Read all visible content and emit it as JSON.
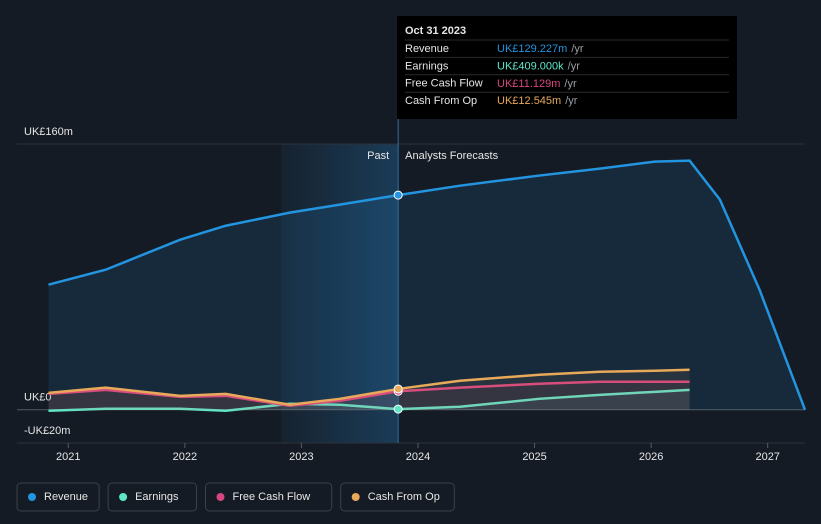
{
  "chart_data": {
    "type": "line",
    "x": [
      2020.83,
      2021.32,
      2021.96,
      2022.35,
      2022.9,
      2023.33,
      2023.83,
      2024.36,
      2025.04,
      2025.56,
      2026.03,
      2026.33,
      2026.59,
      2026.93,
      2027.32
    ],
    "series": [
      {
        "name": "Revenue",
        "color": "#2394df",
        "values": [
          75.3,
          84.3,
          102.4,
          110.8,
          118.7,
          123.5,
          129.227,
          134.9,
          141,
          145.2,
          149.4,
          150,
          126.5,
          72.3,
          0
        ]
      },
      {
        "name": "Earnings",
        "color": "#5ee6c8",
        "values": [
          -0.6,
          0.6,
          0.6,
          -0.6,
          3.6,
          3,
          0.409,
          1.8,
          6.6,
          9,
          10.8,
          12,
          null,
          null,
          null
        ]
      },
      {
        "name": "Free Cash Flow",
        "color": "#d6477f",
        "values": [
          9.6,
          12,
          7.8,
          8.4,
          2.4,
          5.4,
          11.129,
          13.3,
          15.7,
          16.9,
          16.9,
          16.9,
          null,
          null,
          null
        ]
      },
      {
        "name": "Cash From Op",
        "color": "#e8a95a",
        "values": [
          10.2,
          13.3,
          8.4,
          9.6,
          3,
          6.6,
          12.545,
          17.5,
          21.1,
          22.9,
          23.5,
          24.1,
          null,
          null,
          null
        ]
      }
    ],
    "xlim": [
      2020.56,
      2027.32
    ],
    "xticks": [
      2021,
      2022,
      2023,
      2024,
      2025,
      2026,
      2027
    ],
    "ylim": [
      -20,
      160
    ],
    "yticks": [
      {
        "value": 160,
        "label": "UK£160m"
      },
      {
        "value": 0,
        "label": "UK£0"
      },
      {
        "value": -20,
        "label": "-UK£20m"
      }
    ],
    "past_label": "Past",
    "forecast_label": "Analysts Forecasts",
    "tooltip": {
      "date": "Oct 31 2023",
      "rows": [
        {
          "label": "Revenue",
          "value": "UK£129.227m",
          "unit": "/yr"
        },
        {
          "label": "Earnings",
          "value": "UK£409.000k",
          "unit": "/yr"
        },
        {
          "label": "Free Cash Flow",
          "value": "UK£11.129m",
          "unit": "/yr"
        },
        {
          "label": "Cash From Op",
          "value": "UK£12.545m",
          "unit": "/yr"
        }
      ]
    }
  }
}
